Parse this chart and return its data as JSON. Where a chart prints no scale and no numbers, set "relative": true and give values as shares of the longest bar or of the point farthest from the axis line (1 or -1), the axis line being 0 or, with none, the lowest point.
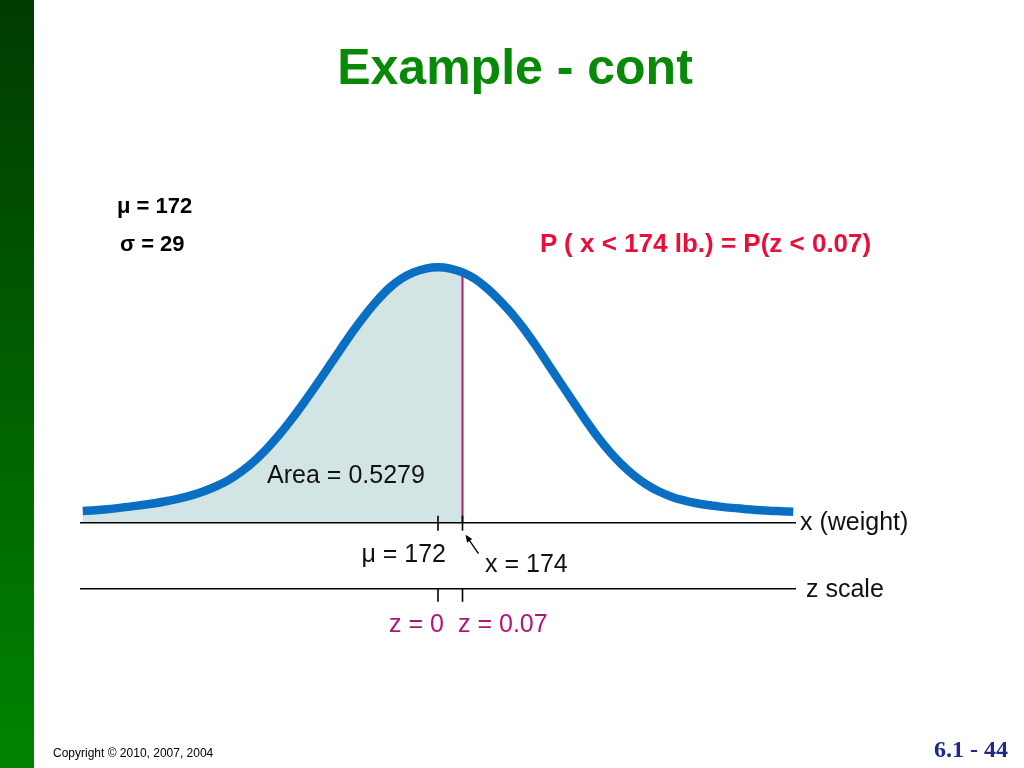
{
  "chart_data": {
    "type": "line",
    "title": "Example - cont",
    "relative": true,
    "xlabel": "x (weight)",
    "categories": [
      null,
      null,
      null,
      null,
      null,
      null,
      null,
      null,
      null,
      null,
      null,
      null,
      null,
      null,
      null,
      null,
      null,
      null,
      null,
      null,
      null,
      null,
      null,
      null,
      null,
      null,
      null,
      null,
      null,
      null,
      null,
      null,
      null,
      null,
      null,
      null,
      null,
      null,
      null,
      null,
      null,
      null,
      null,
      null,
      null,
      null,
      null,
      null,
      null,
      null,
      null,
      null,
      null,
      null,
      null,
      null,
      null,
      null,
      null
    ],
    "series": [
      {
        "type": "area",
        "color": "#d2e4e4",
        "values": [
          0.046,
          0.049,
          0.053,
          0.058,
          0.064,
          0.07,
          0.077,
          0.086,
          0.096,
          0.109,
          0.125,
          0.145,
          0.17,
          0.202,
          0.241,
          0.288,
          0.342,
          0.402,
          0.467,
          0.535,
          0.605,
          0.676,
          0.746,
          0.81,
          0.868,
          0.918,
          0.955,
          0.98,
          0.995,
          1,
          0.995,
          0.98,
          null,
          null,
          null,
          null,
          null,
          null,
          null,
          null,
          null,
          null,
          null,
          null,
          null,
          null,
          null,
          null,
          null,
          null,
          null,
          null,
          null,
          null,
          null,
          null,
          null,
          null,
          null
        ]
      },
      {
        "color": "#0a6fc2",
        "values": [
          0.046,
          0.049,
          0.053,
          0.058,
          0.064,
          0.07,
          0.077,
          0.086,
          0.096,
          0.109,
          0.125,
          0.145,
          0.17,
          0.202,
          0.241,
          0.288,
          0.342,
          0.402,
          0.467,
          0.535,
          0.605,
          0.676,
          0.746,
          0.81,
          0.868,
          0.918,
          0.955,
          0.98,
          0.995,
          1,
          0.995,
          0.98,
          0.955,
          0.918,
          0.872,
          0.82,
          0.76,
          0.692,
          0.62,
          0.548,
          0.476,
          0.405,
          0.338,
          0.279,
          0.228,
          0.185,
          0.15,
          0.123,
          0.103,
          0.088,
          0.077,
          0.069,
          0.063,
          0.058,
          0.054,
          0.05,
          0.047,
          0.045,
          0.043
        ]
      }
    ],
    "annotations": [
      "μ = 172",
      "σ = 29",
      "P ( x < 174 lb.) = P(z < 0.07)",
      "Area = 0.5279",
      "μ = 172",
      "x = 174",
      "z scale",
      "z = 0",
      "z = 0.07",
      "Copyright © 2010, 2007, 2004",
      "6.1 - 44"
    ]
  }
}
